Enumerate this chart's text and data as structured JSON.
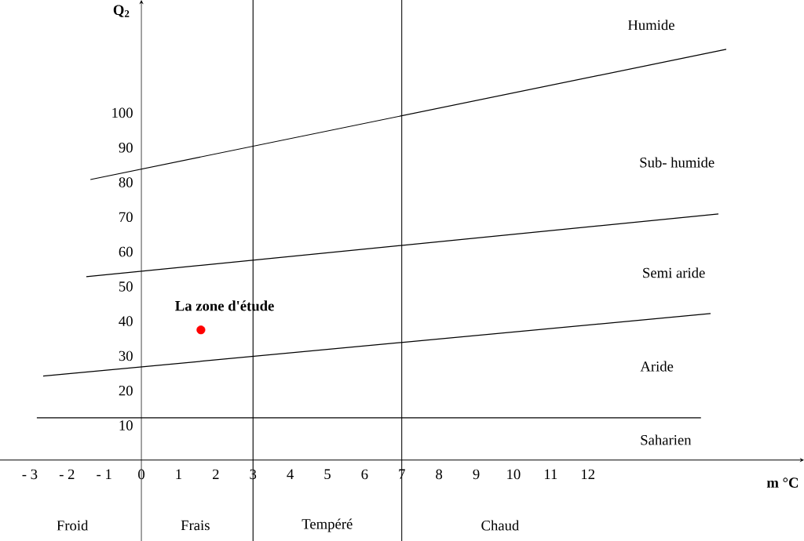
{
  "chart_data": {
    "type": "line",
    "xlabel": "m °C",
    "ylabel": "Q$_{2}$",
    "xlim": [
      -3.8,
      17.81
    ],
    "ylim": [
      -23.3,
      132.5
    ],
    "xticks": [
      {
        "value": -3,
        "label": "- 3"
      },
      {
        "value": -2,
        "label": "- 2"
      },
      {
        "value": -1,
        "label": "- 1"
      },
      0,
      1,
      2,
      3,
      4,
      5,
      6,
      7,
      8,
      9,
      10,
      11,
      12
    ],
    "yticks": [
      10,
      20,
      30,
      40,
      50,
      60,
      70,
      80,
      90,
      100
    ],
    "series": [
      {
        "color": "#000000",
        "x": [
          -1.37,
          15.72
        ],
        "values": [
          80.8,
          118.3
        ]
      },
      {
        "color": "#000000",
        "x": [
          -1.48,
          15.51
        ],
        "values": [
          52.8,
          70.9
        ]
      },
      {
        "color": "#000000",
        "x": [
          -2.64,
          15.3
        ],
        "values": [
          24.2,
          42.2
        ]
      },
      {
        "color": "#000000",
        "x": [
          -2.81,
          15.04
        ],
        "values": [
          12.2,
          12.2
        ]
      },
      {
        "type": "scatter",
        "name": "La zone d'étude",
        "color": "#ff0000",
        "x": [
          1.6
        ],
        "values": [
          37.5
        ]
      }
    ],
    "ref_lines": [
      {
        "axis": "x",
        "value": 3
      },
      {
        "axis": "x",
        "value": 7
      }
    ],
    "annotations": [
      "Humide",
      "Sub- humide",
      "Semi aride",
      "Aride",
      "Saharien",
      "Froid",
      "Frais",
      "Tempéré",
      "Chaud"
    ]
  }
}
